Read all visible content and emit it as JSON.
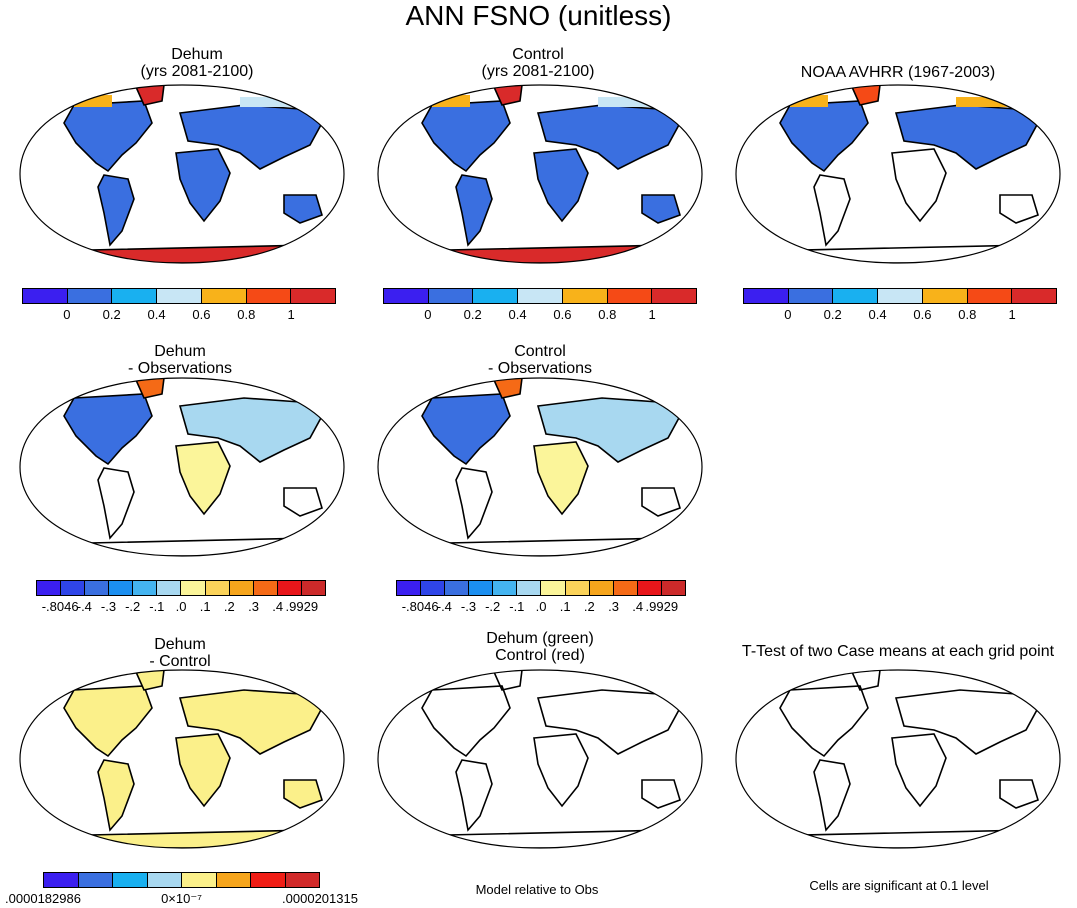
{
  "title": "ANN FSNO (unitless)",
  "panels": [
    {
      "id": "dehum",
      "title1": "Dehum",
      "title2": "(yrs 2081-2100)"
    },
    {
      "id": "control",
      "title1": "Control",
      "title2": "(yrs 2081-2100)"
    },
    {
      "id": "obs",
      "title1": "NOAA AVHRR (1967-2003)",
      "title2": ""
    },
    {
      "id": "dehum-obs",
      "title1": "Dehum",
      "title2": "- Observations"
    },
    {
      "id": "control-obs",
      "title1": "Control",
      "title2": "- Observations"
    },
    {
      "id": "dehum-control",
      "title1": "Dehum",
      "title2": "- Control"
    },
    {
      "id": "contours",
      "title1": "Dehum (green)",
      "title2": "Control (red)"
    },
    {
      "id": "ttest",
      "title1": "T-Test of two Case means at each grid point",
      "title2": ""
    }
  ],
  "colorbars": {
    "abs": {
      "colors": [
        "#3b1ff0",
        "#3a6fe0",
        "#19b0f0",
        "#c8e6f5",
        "#f8b21a",
        "#f54a16",
        "#d92a2a"
      ],
      "labels": [
        "0",
        "0.2",
        "0.4",
        "0.6",
        "0.8",
        "1"
      ]
    },
    "diff": {
      "colors": [
        "#3b1ff0",
        "#2f45e8",
        "#3a6fe0",
        "#1b8ff0",
        "#44b4f0",
        "#a8d8f0",
        "#fbf59a",
        "#fbd35a",
        "#f6a51c",
        "#f56a16",
        "#e8161a",
        "#cc2a2a"
      ],
      "labels": [
        "-.8046",
        "-.4",
        "-.3",
        "-.2",
        "-.1",
        ".0",
        ".1",
        ".2",
        ".3",
        ".4",
        ".9929"
      ]
    },
    "dc": {
      "colors": [
        "#3b1ff0",
        "#3a6fe0",
        "#19b0f0",
        "#a8d8f0",
        "#fbf08a",
        "#f6a51c",
        "#f01e16",
        "#d12a2a"
      ],
      "labels": [
        ".0000182986",
        "0×10⁻⁷",
        ".0000201315"
      ]
    }
  },
  "notes": {
    "contours": "Model relative to Obs",
    "ttest": "Cells are significant at 0.1 level"
  }
}
